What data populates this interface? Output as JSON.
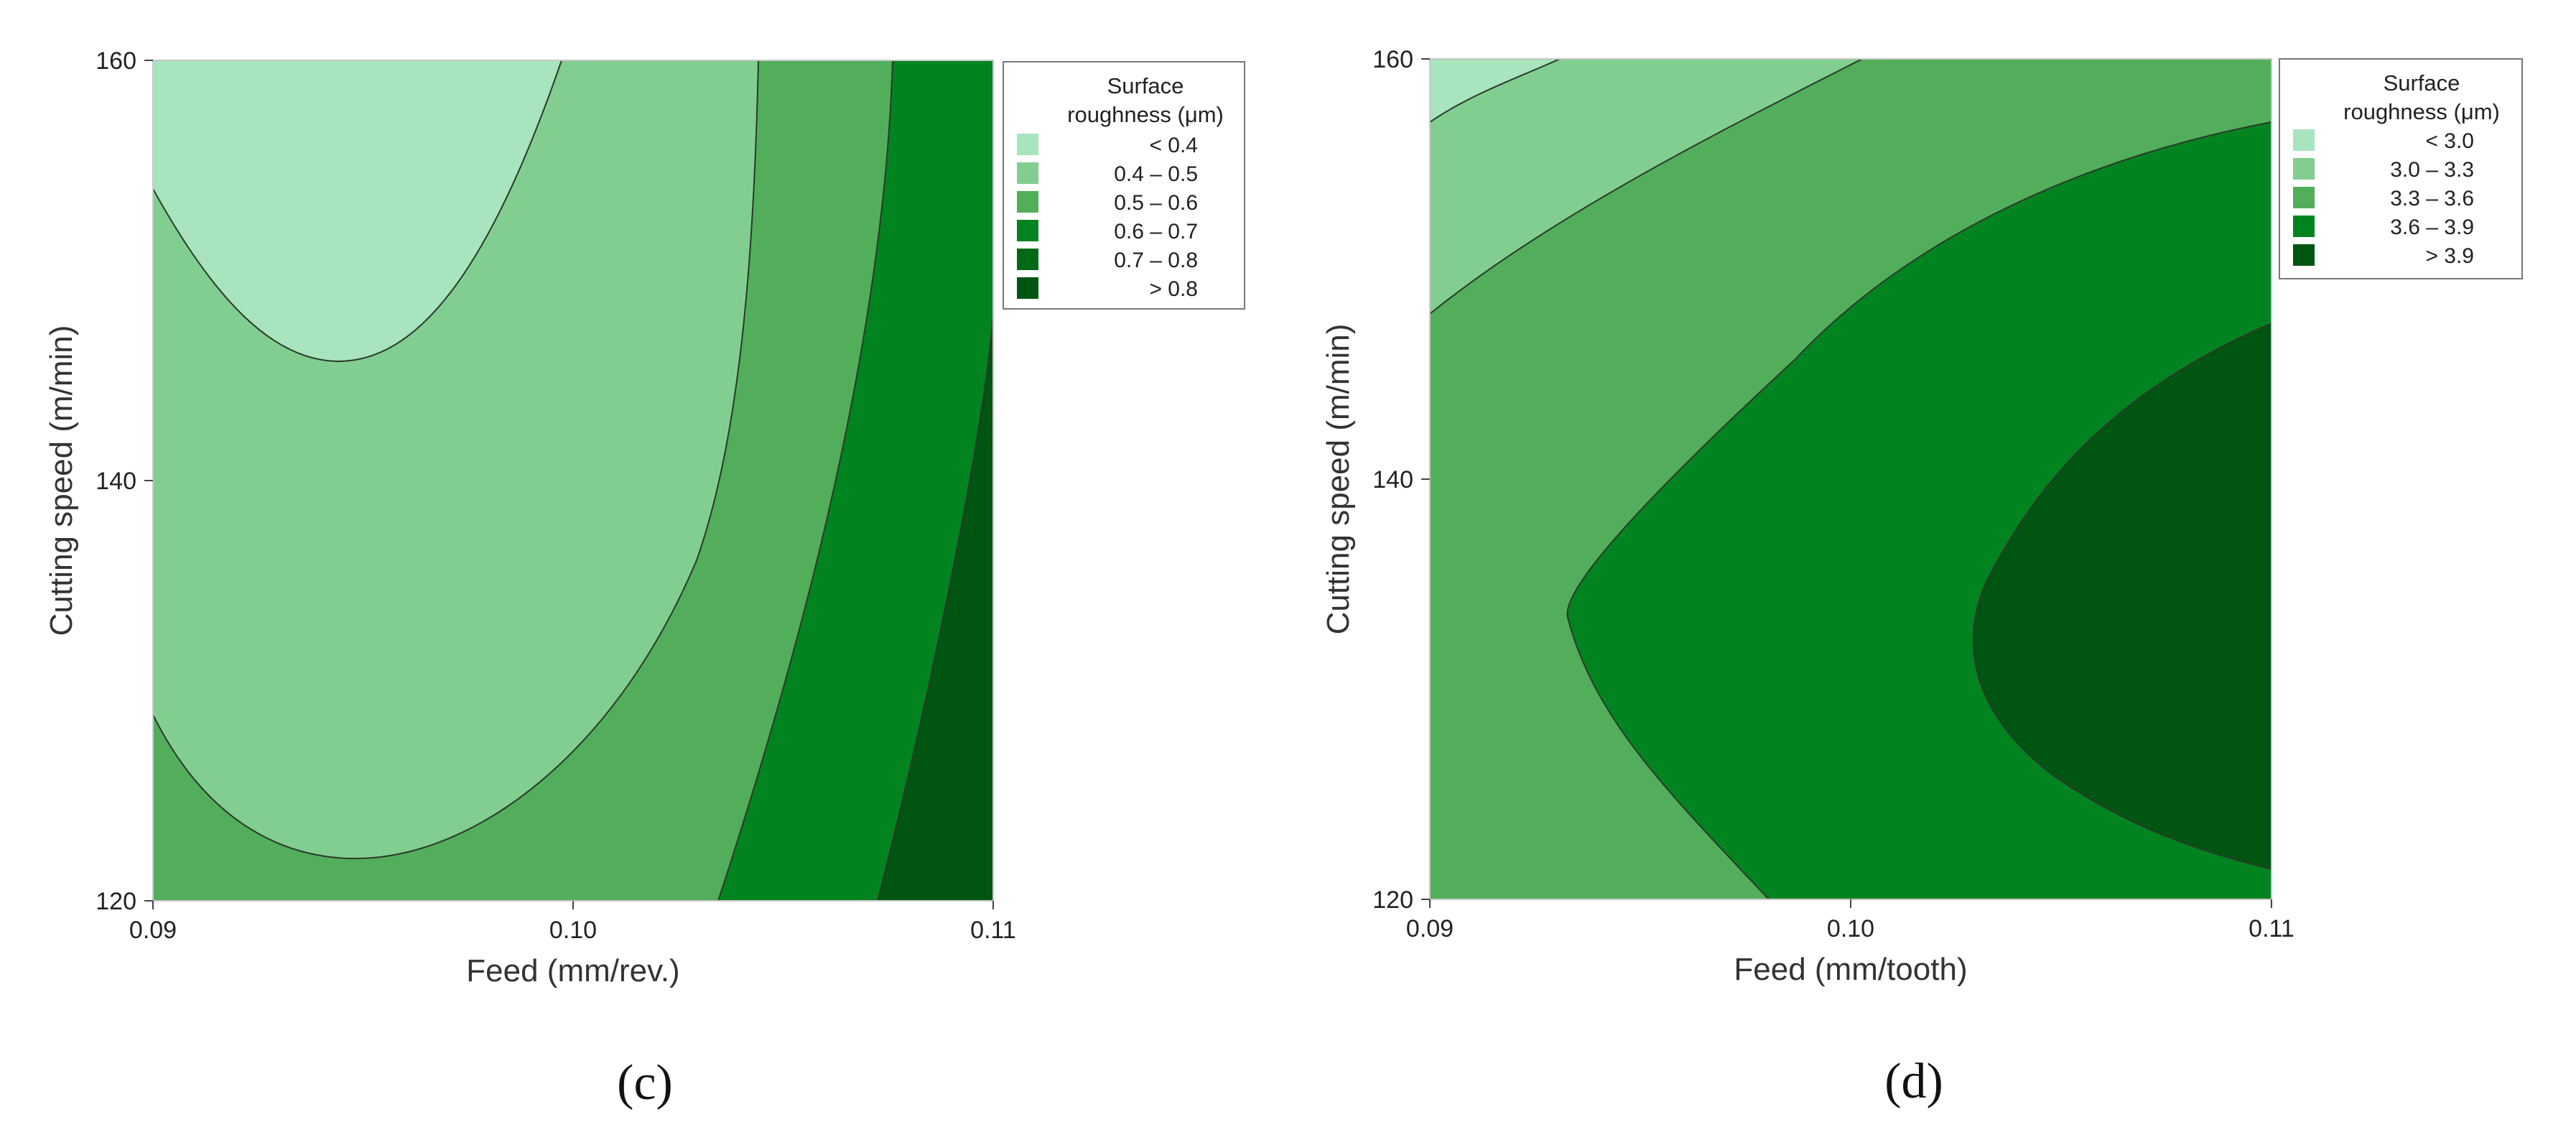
{
  "chart_data": [
    {
      "type": "contour",
      "panel_label": "(c)",
      "xlabel": "Feed (mm/rev.)",
      "ylabel": "Cutting speed (m/min)",
      "xlim": [
        0.09,
        0.11
      ],
      "ylim": [
        120,
        160
      ],
      "xticks": [
        "0.09",
        "0.10",
        "0.11"
      ],
      "yticks": [
        "120",
        "140",
        "160"
      ],
      "legend": {
        "title_lines": [
          "Surface",
          "roughness (μm)"
        ],
        "placement": "right",
        "items": [
          {
            "label": "<  0.4",
            "color": "#a8e4bd"
          },
          {
            "label": "0.4  –  0.5",
            "color": "#82ce90"
          },
          {
            "label": "0.5  –  0.6",
            "color": "#52ae5a"
          },
          {
            "label": "0.6  –  0.7",
            "color": "#018420"
          },
          {
            "label": "0.7  –  0.8",
            "color": "#006b14"
          },
          {
            "label": ">  0.8",
            "color": "#005510"
          }
        ]
      },
      "regions": [
        {
          "level": "< 0.4",
          "x": [
            0.09,
            0.0919,
            0.0941,
            0.0947,
            0.0958,
            0.0975,
            0.0987,
            0.09,
            0.09
          ],
          "y": [
            154,
            149,
            145.9,
            145.8,
            146.5,
            152,
            160,
            160,
            154
          ]
        },
        {
          "level": "0.4 – 0.5",
          "boundary_x": [
            0.09,
            0.0926,
            0.0954,
            0.0985,
            0.1009,
            0.1037,
            0.1045
          ],
          "boundary_y": [
            129,
            124,
            122.2,
            124,
            130,
            145,
            160
          ]
        },
        {
          "level": "0.5 – 0.6",
          "boundary_x": [
            0.1036,
            0.1052,
            0.1067,
            0.1076,
            0.1078
          ],
          "boundary_y": [
            120,
            130,
            140,
            150,
            160
          ]
        },
        {
          "level": "0.6 – 0.7",
          "boundary_x": [
            0.1072,
            0.1086,
            0.1099,
            0.1107,
            0.11
          ],
          "boundary_y": [
            120,
            130,
            140,
            150,
            154
          ]
        },
        {
          "level": "> 0.8",
          "x": [
            0.1072,
            0.1086,
            0.1099,
            0.1107,
            0.11,
            0.11
          ],
          "y": [
            120,
            130,
            140,
            150,
            154,
            120
          ]
        }
      ]
    },
    {
      "type": "contour",
      "panel_label": "(d)",
      "xlabel": "Feed (mm/tooth)",
      "ylabel": "Cutting speed (m/min)",
      "xlim": [
        0.09,
        0.11
      ],
      "ylim": [
        120,
        160
      ],
      "xticks": [
        "0.09",
        "0.10",
        "0.11"
      ],
      "yticks": [
        "120",
        "140",
        "160"
      ],
      "legend": {
        "title_lines": [
          "Surface",
          "roughness (μm)"
        ],
        "placement": "right",
        "items": [
          {
            "label": "<  3.0",
            "color": "#a8e4bd"
          },
          {
            "label": "3.0  –  3.3",
            "color": "#82ce90"
          },
          {
            "label": "3.3  –  3.6",
            "color": "#52ae5a"
          },
          {
            "label": "3.6  –  3.9",
            "color": "#018420"
          },
          {
            "label": ">  3.9",
            "color": "#005510"
          }
        ]
      },
      "regions": [
        {
          "level": "< 3.0",
          "x": [
            0.09,
            0.0924,
            0.0931,
            0.09
          ],
          "y": [
            157,
            159.1,
            160,
            160
          ]
        },
        {
          "level": "3.0 – 3.3",
          "boundary_x": [
            0.09,
            0.0936,
            0.0975,
            0.1018
          ],
          "boundary_y": [
            148,
            153,
            158,
            160
          ]
        },
        {
          "level": "3.6 – 3.9",
          "x": [
            0.11,
            0.1074,
            0.1036,
            0.1006,
            0.0966,
            0.0939,
            0.0933,
            0.0946,
            0.0969,
            0.0985,
            0.11
          ],
          "y": [
            157,
            155.8,
            152.7,
            148.9,
            141,
            135,
            133,
            128.5,
            124,
            120,
            120
          ]
        },
        {
          "level": "> 3.9",
          "x": [
            0.11,
            0.1084,
            0.1047,
            0.103,
            0.1033,
            0.1051,
            0.1079,
            0.11
          ],
          "y": [
            147.5,
            145.6,
            140.5,
            134.5,
            130,
            126.4,
            123.5,
            121.5
          ]
        }
      ]
    }
  ]
}
